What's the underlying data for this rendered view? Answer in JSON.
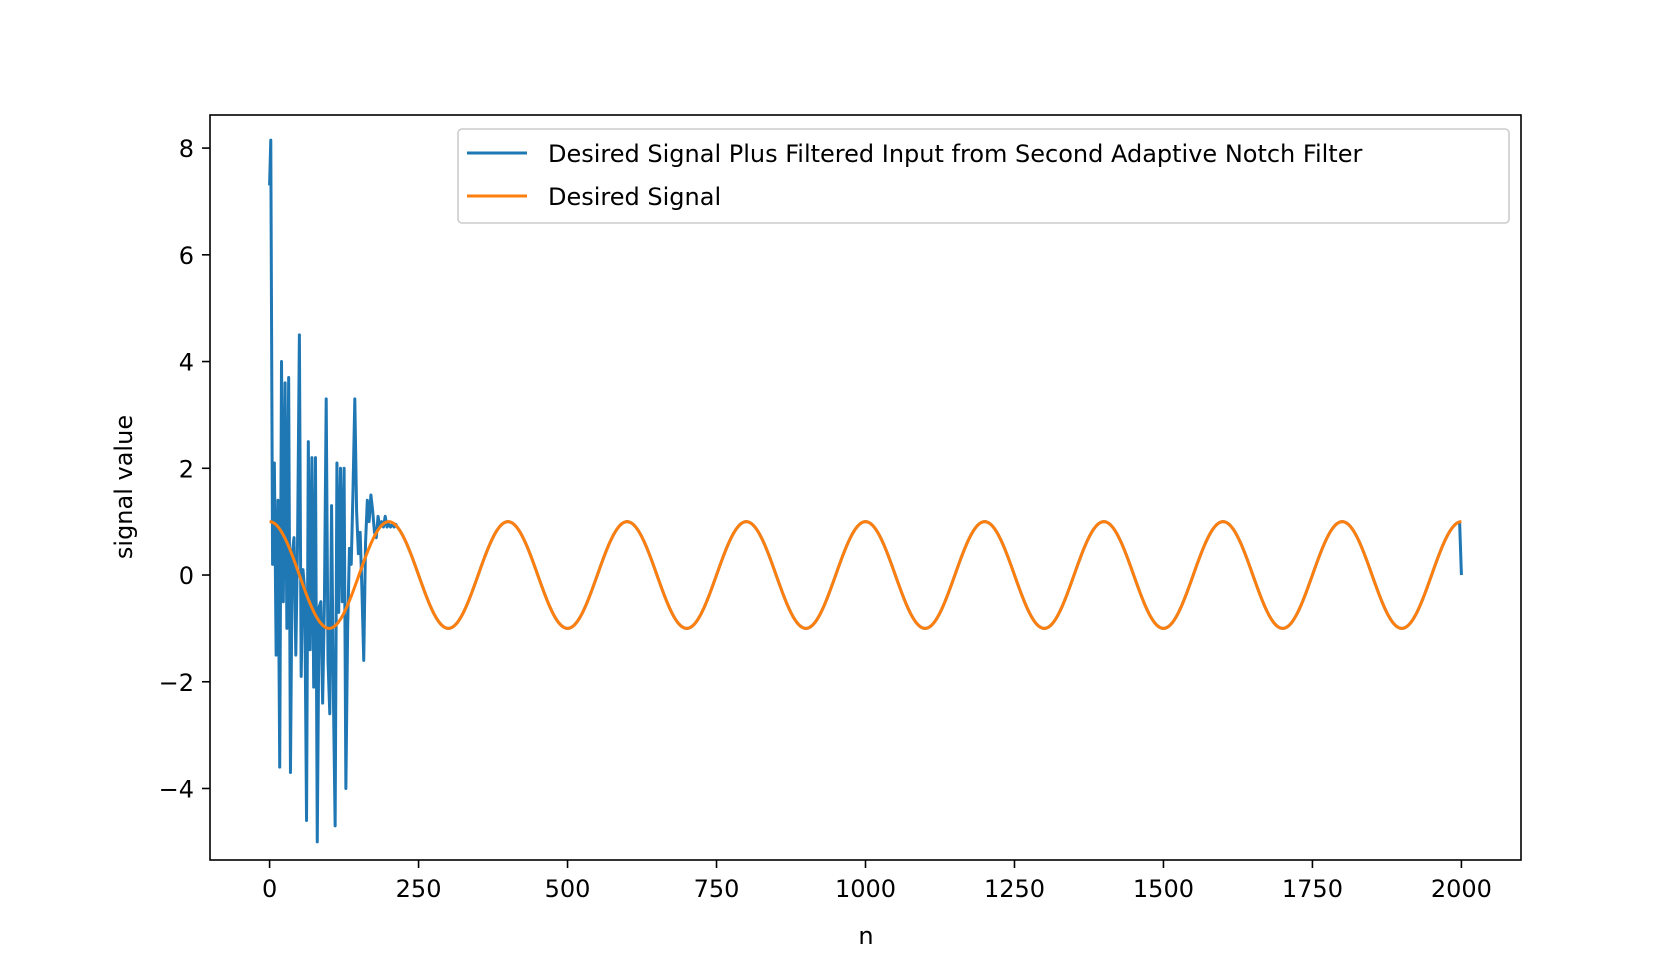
{
  "chart_data": {
    "type": "line",
    "title": "",
    "xlabel": "n",
    "ylabel": "signal value",
    "xlim": [
      -100,
      2100
    ],
    "ylim": [
      -5.34,
      8.62
    ],
    "xticks": [
      0,
      250,
      500,
      750,
      1000,
      1250,
      1500,
      1750,
      2000
    ],
    "xtick_labels": [
      "0",
      "250",
      "500",
      "750",
      "1000",
      "1250",
      "1500",
      "1750",
      "2000"
    ],
    "yticks": [
      -4,
      -2,
      0,
      2,
      4,
      6,
      8
    ],
    "ytick_labels": [
      "−4",
      "−2",
      "0",
      "2",
      "4",
      "6",
      "8"
    ],
    "grid": false,
    "legend_position": "top-right",
    "series": [
      {
        "name": "Desired Signal Plus Filtered Input from Second Adaptive Notch Filter",
        "color": "#1f77b4",
        "x": [
          0,
          2,
          5,
          8,
          11,
          14,
          17,
          20,
          23,
          26,
          29,
          32,
          35,
          38,
          41,
          44,
          47,
          50,
          53,
          56,
          59,
          62,
          65,
          68,
          71,
          74,
          77,
          80,
          83,
          86,
          89,
          92,
          95,
          98,
          101,
          104,
          107,
          110,
          113,
          116,
          119,
          122,
          125,
          128,
          131,
          134,
          137,
          140,
          143,
          146,
          149,
          152,
          155,
          158,
          161,
          164,
          167,
          170,
          173,
          176,
          179,
          182,
          185,
          188,
          191,
          194,
          197,
          200,
          203,
          206,
          209,
          212,
          1997,
          2000
        ],
        "y": [
          7.3,
          8.15,
          0.2,
          2.1,
          -1.5,
          1.4,
          -3.6,
          4.0,
          -0.5,
          3.6,
          -1.0,
          3.7,
          -3.7,
          0.4,
          0.7,
          -1.5,
          0.7,
          4.5,
          -1.9,
          0.1,
          -0.3,
          -4.6,
          2.5,
          -1.4,
          2.2,
          -2.1,
          2.2,
          -5.0,
          -0.6,
          -0.5,
          -2.4,
          -0.5,
          3.3,
          -1.6,
          -2.6,
          1.3,
          -2.2,
          -4.7,
          2.1,
          -0.7,
          2.0,
          -0.5,
          2.0,
          -4.0,
          -1.0,
          0.5,
          0.2,
          1.6,
          3.3,
          1.2,
          0.4,
          0.8,
          -0.3,
          -1.6,
          0.6,
          1.4,
          1.0,
          1.5,
          1.2,
          0.8,
          0.7,
          1.1,
          0.9,
          1.0,
          0.9,
          1.1,
          0.9,
          0.95,
          0.9,
          0.95,
          0.9,
          0.95,
          0.99,
          0.0
        ]
      },
      {
        "name": "Desired Signal",
        "color": "#ff7f0e",
        "function": "cos(2*pi*n/200)",
        "x_range": [
          0,
          2000
        ]
      }
    ]
  }
}
